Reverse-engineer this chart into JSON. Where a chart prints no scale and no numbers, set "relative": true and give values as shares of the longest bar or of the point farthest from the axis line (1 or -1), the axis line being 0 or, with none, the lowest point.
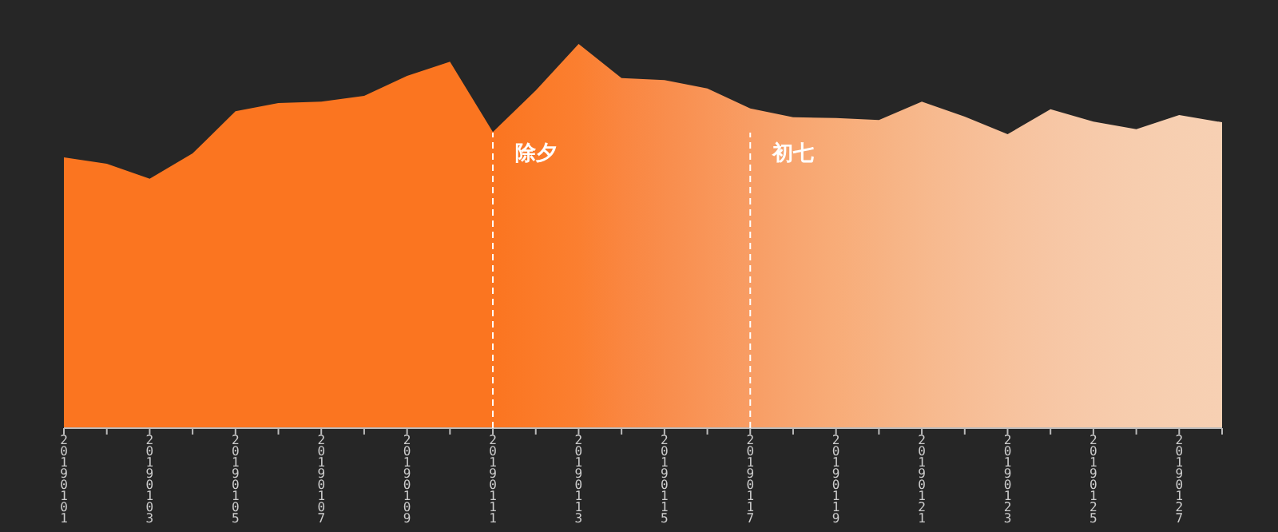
{
  "chart_data": {
    "type": "area",
    "relative": true,
    "categories": [
      "20190101",
      null,
      "20190103",
      null,
      "20190105",
      null,
      "20190107",
      null,
      "20190109",
      null,
      "20190111",
      null,
      "20190113",
      null,
      "20190115",
      null,
      "20190117",
      null,
      "20190119",
      null,
      "20190121",
      null,
      "20190123",
      null,
      "20190125",
      null,
      "20190127",
      null
    ],
    "series": [
      {
        "values": [
          0.705,
          0.688,
          0.649,
          0.715,
          0.825,
          0.846,
          0.85,
          0.865,
          0.917,
          0.954,
          0.771,
          0.879,
          1,
          0.911,
          0.906,
          0.884,
          0.832,
          0.809,
          0.807,
          0.802,
          0.85,
          0.811,
          0.765,
          0.83,
          0.798,
          0.778,
          0.815,
          0.796
        ],
        "colors": [
          "#fb7520",
          "#fb7520",
          "#fb7520",
          "#fb7520",
          "#fb7520",
          "#fb7520",
          "#fb7520",
          "#fb7520",
          "#fb7520",
          "#fb7520",
          "#fb7520",
          "#fb7a28",
          "#fb7f30",
          "#fa8640",
          "#f98d4c",
          "#f99558",
          "#f89d64",
          "#f8a56f",
          "#f8ac78",
          "#f7b282",
          "#f7b88c",
          "#f7bd95",
          "#f7c29d",
          "#f7c6a4",
          "#f7caaa",
          "#f7cdae",
          "#f7cfb1",
          "#f7d0b3"
        ]
      }
    ],
    "ref_lines": [
      {
        "axis": "x",
        "value": "20190111",
        "label": "除夕",
        "color": "#ffffff",
        "line_style": "dashed"
      },
      {
        "axis": "x",
        "value": "20190117",
        "label": "初七",
        "color": "#ffffff",
        "line_style": "dashed"
      }
    ]
  }
}
